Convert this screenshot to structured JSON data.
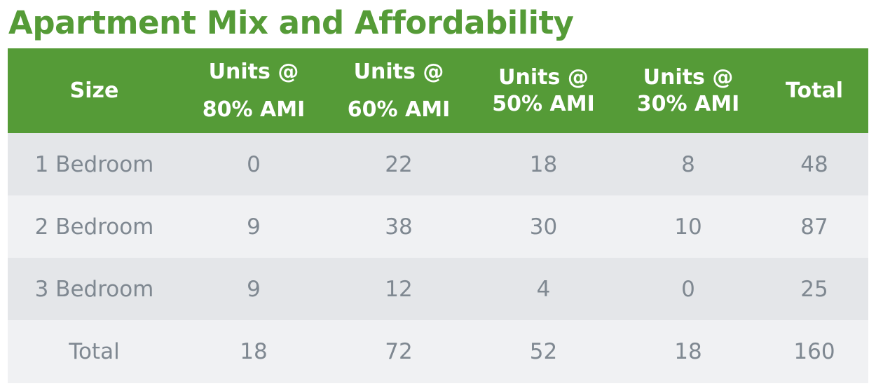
{
  "title": "Apartment Mix and Affordability",
  "colors": {
    "accent": "#559b37",
    "header_text": "#ffffff",
    "body_text": "#7f8891",
    "row_shade": "#e4e6e9",
    "row_light": "#f0f1f3"
  },
  "table": {
    "headers": [
      {
        "line1": "Size",
        "line2": ""
      },
      {
        "line1": "Units @",
        "line2": "80% AMI"
      },
      {
        "line1": "Units @",
        "line2": "60% AMI"
      },
      {
        "line1": "Units @",
        "line2": "50% AMI"
      },
      {
        "line1": "Units @",
        "line2": "30% AMI"
      },
      {
        "line1": "Total",
        "line2": ""
      }
    ],
    "rows": [
      [
        "1 Bedroom",
        "0",
        "22",
        "18",
        "8",
        "48"
      ],
      [
        "2 Bedroom",
        "9",
        "38",
        "30",
        "10",
        "87"
      ],
      [
        "3 Bedroom",
        "9",
        "12",
        "4",
        "0",
        "25"
      ],
      [
        "Total",
        "18",
        "72",
        "52",
        "18",
        "160"
      ]
    ]
  }
}
